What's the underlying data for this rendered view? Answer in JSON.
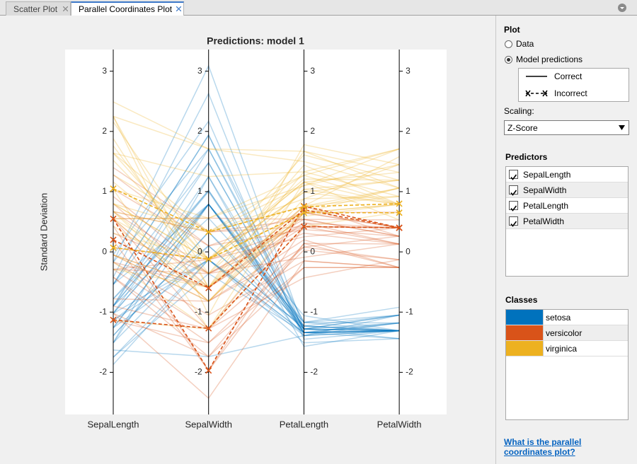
{
  "tabs": [
    "Scatter Plot",
    "Parallel Coordinates Plot"
  ],
  "chart_data": {
    "type": "parallel",
    "title": "Predictions: model 1",
    "y_label": "Standard Deviation",
    "categories": [
      "SepalLength",
      "SepalWidth",
      "PetalLength",
      "PetalWidth"
    ],
    "ylim": [
      -2.7,
      3.36
    ],
    "yticks": [
      -2,
      -1,
      0,
      1,
      2,
      3
    ],
    "grid": false,
    "series": [
      {
        "name": "setosa",
        "color": "#0072bd",
        "correct": [
          [
            -0.9,
            1.0,
            -1.34,
            -1.31
          ],
          [
            -1.14,
            -0.13,
            -1.34,
            -1.31
          ],
          [
            -1.39,
            0.33,
            -1.39,
            -1.31
          ],
          [
            -1.51,
            0.1,
            -1.28,
            -1.31
          ],
          [
            -1.02,
            1.25,
            -1.34,
            -1.31
          ],
          [
            -0.54,
            1.94,
            -1.17,
            -1.05
          ],
          [
            -1.51,
            0.79,
            -1.34,
            -1.18
          ],
          [
            -1.02,
            0.79,
            -1.28,
            -1.31
          ],
          [
            -1.75,
            -0.36,
            -1.34,
            -1.31
          ],
          [
            -1.14,
            0.1,
            -1.28,
            -1.44
          ],
          [
            -0.54,
            1.48,
            -1.28,
            -1.31
          ],
          [
            -1.26,
            0.79,
            -1.23,
            -1.31
          ],
          [
            -1.26,
            -0.13,
            -1.34,
            -1.44
          ],
          [
            -1.87,
            -0.13,
            -1.51,
            -1.44
          ],
          [
            -0.05,
            2.17,
            -1.45,
            -1.31
          ],
          [
            -0.17,
            3.09,
            -1.28,
            -1.05
          ],
          [
            -0.54,
            1.94,
            -1.39,
            -1.05
          ],
          [
            -0.9,
            1.02,
            -1.34,
            -1.18
          ],
          [
            -0.17,
            1.71,
            -1.17,
            -1.18
          ],
          [
            -0.9,
            1.71,
            -1.28,
            -1.18
          ],
          [
            -0.54,
            0.79,
            -1.17,
            -1.31
          ],
          [
            -0.9,
            1.48,
            -1.28,
            -1.05
          ],
          [
            -1.51,
            1.25,
            -1.57,
            -1.31
          ],
          [
            -0.9,
            0.56,
            -1.17,
            -0.92
          ],
          [
            -1.26,
            0.79,
            -1.06,
            -1.31
          ],
          [
            -1.02,
            -0.13,
            -1.23,
            -1.31
          ],
          [
            -1.02,
            0.79,
            -1.23,
            -1.05
          ],
          [
            -0.78,
            1.02,
            -1.28,
            -1.31
          ],
          [
            -0.78,
            0.79,
            -1.34,
            -1.31
          ],
          [
            -1.39,
            0.33,
            -1.23,
            -1.31
          ],
          [
            -0.42,
            2.63,
            -1.34,
            -1.31
          ],
          [
            -1.75,
            -0.13,
            -1.39,
            -1.31
          ],
          [
            -1.63,
            -1.74,
            -1.39,
            -1.18
          ]
        ],
        "incorrect": []
      },
      {
        "name": "versicolor",
        "color": "#d95319",
        "correct": [
          [
            1.4,
            0.33,
            0.54,
            0.26
          ],
          [
            0.67,
            0.33,
            0.42,
            0.4
          ],
          [
            1.28,
            0.1,
            0.65,
            0.4
          ],
          [
            -0.42,
            -1.74,
            0.14,
            0.13
          ],
          [
            0.8,
            -0.59,
            0.48,
            0.4
          ],
          [
            -0.17,
            -0.59,
            0.42,
            0.13
          ],
          [
            0.55,
            0.56,
            0.54,
            0.53
          ],
          [
            -1.14,
            -1.51,
            -0.26,
            -0.26
          ],
          [
            0.92,
            -0.36,
            0.48,
            0.13
          ],
          [
            -0.78,
            -0.82,
            0.08,
            0.26
          ],
          [
            -1.02,
            -2.43,
            -0.15,
            -0.26
          ],
          [
            0.07,
            -0.13,
            0.25,
            0.4
          ],
          [
            0.19,
            -1.97,
            0.14,
            -0.26
          ],
          [
            0.31,
            -0.36,
            0.54,
            0.26
          ],
          [
            -0.29,
            -0.36,
            -0.09,
            0.13
          ],
          [
            1.04,
            0.1,
            0.37,
            0.26
          ],
          [
            -0.29,
            -0.13,
            0.42,
            0.4
          ],
          [
            -0.05,
            -0.82,
            0.2,
            -0.26
          ],
          [
            0.43,
            -1.97,
            0.42,
            0.4
          ],
          [
            -0.29,
            -1.28,
            0.08,
            -0.13
          ],
          [
            0.55,
            -1.28,
            0.65,
            0.4
          ],
          [
            -0.17,
            -1.05,
            -0.15,
            -0.26
          ],
          [
            -0.9,
            -1.28,
            -0.43,
            -0.13
          ],
          [
            -0.05,
            -0.59,
            0.76,
            0.26
          ],
          [
            -0.42,
            -1.51,
            0.03,
            -0.13
          ],
          [
            0.67,
            -0.36,
            0.31,
            0.13
          ],
          [
            -1.02,
            -1.74,
            -0.26,
            -0.26
          ],
          [
            0.55,
            -0.82,
            0.65,
            0.66
          ]
        ],
        "incorrect": [
          [
            -1.13,
            -1.27,
            0.42,
            0.4
          ],
          [
            0.55,
            -1.97,
            0.76,
            0.4
          ],
          [
            0.2,
            -0.6,
            0.7,
            0.4
          ]
        ]
      },
      {
        "name": "virginica",
        "color": "#edb120",
        "correct": [
          [
            0.55,
            0.56,
            1.27,
            1.71
          ],
          [
            -0.05,
            -0.82,
            0.76,
            0.92
          ],
          [
            1.52,
            -0.13,
            1.21,
            1.19
          ],
          [
            0.55,
            -0.36,
            1.04,
            0.79
          ],
          [
            0.8,
            -0.13,
            1.16,
            1.32
          ],
          [
            2.16,
            -0.13,
            1.61,
            1.19
          ],
          [
            -1.14,
            -1.28,
            0.42,
            0.66
          ],
          [
            1.76,
            -0.36,
            1.44,
            0.79
          ],
          [
            1.04,
            -1.28,
            1.16,
            0.79
          ],
          [
            1.64,
            1.25,
            1.33,
            1.71
          ],
          [
            0.8,
            0.33,
            0.76,
            1.06
          ],
          [
            0.67,
            -0.82,
            0.88,
            0.92
          ],
          [
            1.16,
            -0.13,
            0.99,
            1.19
          ],
          [
            -0.17,
            -1.28,
            0.71,
            1.06
          ],
          [
            -0.05,
            -0.59,
            0.76,
            1.58
          ],
          [
            0.67,
            0.33,
            0.88,
            1.45
          ],
          [
            0.8,
            -0.13,
            0.99,
            0.79
          ],
          [
            2.25,
            1.71,
            1.67,
            1.32
          ],
          [
            2.25,
            -1.05,
            1.78,
            1.45
          ],
          [
            1.28,
            0.33,
            1.1,
            1.45
          ],
          [
            -0.29,
            -0.59,
            0.65,
            1.06
          ],
          [
            2.25,
            -0.59,
            1.67,
            1.06
          ],
          [
            0.55,
            -0.82,
            0.65,
            0.79
          ],
          [
            1.04,
            0.56,
            1.1,
            1.71
          ],
          [
            1.64,
            0.33,
            1.27,
            0.79
          ],
          [
            0.43,
            -0.59,
            0.59,
            0.79
          ],
          [
            0.31,
            -0.13,
            0.65,
            0.79
          ],
          [
            0.67,
            -0.59,
            1.04,
            1.19
          ],
          [
            1.64,
            -0.13,
            1.16,
            0.53
          ],
          [
            1.88,
            -0.59,
            1.33,
            0.92
          ],
          [
            2.49,
            1.71,
            1.5,
            1.06
          ]
        ],
        "incorrect": [
          [
            1.05,
            0.33,
            0.75,
            0.8
          ],
          [
            0.07,
            -0.12,
            0.65,
            0.65
          ]
        ]
      }
    ]
  },
  "panel": {
    "plot_heading": "Plot",
    "options": [
      "Data",
      "Model predictions"
    ],
    "line_styles": [
      "Correct",
      "Incorrect"
    ],
    "scaling_label": "Scaling:",
    "scaling_value": "Z-Score",
    "predictors_heading": "Predictors",
    "classes_heading": "Classes",
    "help_link": "What is the parallel coordinates plot?"
  }
}
